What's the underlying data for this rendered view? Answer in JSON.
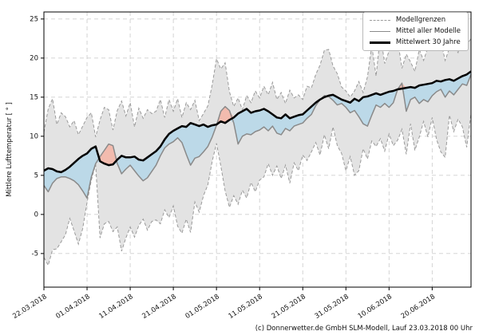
{
  "figure": {
    "ylabel": "Mittlere Lufttemperatur [ ° ]",
    "caption": "(c) Donnerwetter.de GmbH SLM-Modell, Lauf 23.03.2018 00 Uhr"
  },
  "legend": {
    "position": "upper right",
    "items": [
      {
        "label": "Modellgrenzen",
        "style": "dashed-gray-line"
      },
      {
        "label": "Mittel aller Modelle",
        "style": "solid-gray-line"
      },
      {
        "label": "Mittelwert 30 Jahre",
        "style": "thick-black-line"
      }
    ]
  },
  "chart_data": {
    "type": "line",
    "title": "",
    "xlabel": "",
    "ylabel": "Mittlere Lufttemperatur [ ° ]",
    "ylim": [
      -9.3,
      25.9
    ],
    "yticks": [
      -5,
      0,
      5,
      10,
      15,
      20,
      25
    ],
    "grid": true,
    "legend_position": "upper right",
    "x_tick_days": [
      0,
      10,
      20,
      30,
      40,
      50,
      60,
      70,
      80,
      90
    ],
    "x_tick_labels": [
      "22.03.2018",
      "01.04.2018",
      "11.04.2018",
      "21.04.2018",
      "01.05.2018",
      "11.05.2018",
      "21.05.2018",
      "31.05.2018",
      "10.06.2018",
      "20.06.2018"
    ],
    "n_days": 100,
    "fill_between": {
      "band_between": [
        "Modellgrenzen max",
        "Modellgrenzen min"
      ],
      "below_climate_color_between": [
        "Mittel aller Modelle",
        "Mittelwert 30 Jahre"
      ]
    },
    "series": [
      {
        "name": "Modellgrenzen max",
        "style": "dashed",
        "values": [
          10.5,
          13.5,
          14.8,
          11.5,
          13.0,
          12.5,
          11.2,
          12.0,
          10.2,
          11.3,
          12.4,
          13.0,
          9.9,
          12.1,
          13.7,
          13.4,
          10.8,
          13.3,
          14.5,
          12.6,
          14.3,
          11.2,
          13.6,
          12.3,
          13.4,
          12.9,
          13.2,
          14.7,
          12.4,
          14.7,
          13.2,
          14.8,
          12.4,
          14.3,
          13.4,
          14.6,
          12.0,
          12.9,
          13.9,
          16.6,
          19.9,
          18.6,
          19.4,
          15.7,
          13.8,
          14.9,
          13.4,
          15.2,
          14.3,
          15.8,
          14.9,
          16.4,
          15.3,
          16.9,
          14.7,
          15.6,
          14.2,
          15.9,
          14.9,
          15.3,
          14.7,
          16.4,
          16.2,
          17.9,
          19.1,
          21.0,
          21.1,
          19.0,
          18.0,
          16.3,
          15.8,
          15.0,
          15.8,
          17.0,
          15.6,
          17.6,
          21.6,
          17.7,
          23.0,
          19.3,
          20.9,
          21.7,
          22.3,
          18.7,
          20.5,
          19.5,
          18.3,
          21.1,
          19.7,
          21.4,
          22.7,
          21.9,
          22.2,
          19.7,
          21.3,
          21.5,
          20.7,
          23.1,
          21.7,
          22.5
        ]
      },
      {
        "name": "Modellgrenzen min",
        "style": "dashed",
        "values": [
          -5.5,
          -6.5,
          -4.5,
          -4.4,
          -3.5,
          -2.6,
          -0.5,
          -2.1,
          -3.8,
          -1.8,
          1.5,
          4.4,
          6.4,
          -3.0,
          -1.2,
          -0.9,
          -2.2,
          -1.6,
          -4.7,
          -3.0,
          -1.6,
          -2.9,
          -1.4,
          -0.6,
          -2.0,
          -0.9,
          -0.7,
          -1.2,
          0.6,
          -0.4,
          1.1,
          -1.5,
          -2.4,
          -0.6,
          -2.3,
          1.6,
          0.3,
          2.4,
          3.8,
          6.8,
          9.1,
          6.2,
          3.0,
          0.9,
          2.4,
          1.3,
          3.1,
          2.1,
          4.1,
          2.9,
          4.4,
          4.8,
          6.5,
          5.0,
          6.2,
          4.6,
          6.3,
          4.0,
          6.6,
          5.6,
          7.6,
          6.9,
          8.0,
          9.2,
          7.6,
          10.2,
          8.4,
          11.2,
          8.8,
          7.8,
          5.6,
          7.4,
          5.0,
          5.6,
          8.4,
          7.1,
          9.4,
          8.7,
          9.7,
          8.1,
          10.3,
          8.8,
          9.5,
          10.9,
          7.7,
          11.6,
          8.2,
          9.9,
          11.9,
          9.9,
          12.4,
          9.6,
          8.0,
          7.3,
          12.7,
          10.6,
          12.2,
          11.2,
          8.6,
          12.9
        ]
      },
      {
        "name": "Mittel aller Modelle",
        "style": "solid-gray",
        "values": [
          3.7,
          2.9,
          4.0,
          4.6,
          4.8,
          4.8,
          4.6,
          4.3,
          3.8,
          3.0,
          2.1,
          4.8,
          6.5,
          7.4,
          8.2,
          9.0,
          8.8,
          6.5,
          5.2,
          5.8,
          6.3,
          5.6,
          4.9,
          4.3,
          4.7,
          5.5,
          6.3,
          7.5,
          8.5,
          9.0,
          9.3,
          9.8,
          9.2,
          7.7,
          6.3,
          7.2,
          7.4,
          8.0,
          8.7,
          9.9,
          11.4,
          13.2,
          13.8,
          13.3,
          11.7,
          9.0,
          10.0,
          10.3,
          10.2,
          10.6,
          10.8,
          11.2,
          10.7,
          11.3,
          10.4,
          10.2,
          11.0,
          10.7,
          11.3,
          11.5,
          11.7,
          12.3,
          12.8,
          13.9,
          14.7,
          15.2,
          15.1,
          14.6,
          14.0,
          14.2,
          13.7,
          13.0,
          13.3,
          12.5,
          11.6,
          11.3,
          12.7,
          14.0,
          13.7,
          14.2,
          13.7,
          14.3,
          16.0,
          16.8,
          13.2,
          14.7,
          15.0,
          14.2,
          14.7,
          14.4,
          15.2,
          15.7,
          16.0,
          15.0,
          15.8,
          15.3,
          16.0,
          16.7,
          16.5,
          17.9
        ]
      },
      {
        "name": "Mittelwert 30 Jahre",
        "style": "thick-black",
        "values": [
          5.6,
          5.9,
          5.8,
          5.5,
          5.4,
          5.7,
          6.1,
          6.6,
          7.1,
          7.5,
          7.8,
          8.4,
          8.7,
          6.8,
          6.5,
          6.3,
          6.4,
          7.0,
          7.5,
          7.3,
          7.3,
          7.4,
          7.0,
          6.9,
          7.3,
          7.7,
          8.1,
          8.7,
          9.6,
          10.3,
          10.7,
          11.0,
          11.3,
          11.2,
          11.7,
          11.5,
          11.3,
          11.5,
          11.2,
          11.4,
          11.5,
          11.9,
          11.7,
          12.1,
          12.4,
          12.9,
          13.2,
          13.5,
          13.0,
          13.2,
          13.3,
          13.5,
          13.2,
          12.8,
          12.4,
          12.3,
          12.8,
          12.3,
          12.5,
          12.7,
          12.8,
          13.3,
          13.8,
          14.3,
          14.7,
          15.0,
          15.2,
          15.3,
          15.0,
          14.7,
          14.5,
          14.3,
          14.8,
          14.5,
          15.0,
          15.1,
          15.3,
          15.5,
          15.3,
          15.5,
          15.7,
          15.8,
          16.0,
          16.1,
          16.2,
          16.3,
          16.2,
          16.5,
          16.6,
          16.7,
          16.8,
          17.1,
          17.0,
          17.2,
          17.3,
          17.1,
          17.4,
          17.7,
          17.9,
          18.3
        ]
      }
    ],
    "colors": {
      "band_fill": "#e3e3e3",
      "bounds_line": "#9a9a9a",
      "models_line": "#8a8a8a",
      "climate_line": "#000000",
      "below_fill": "#b7d7e8",
      "above_fill": "#f2b8ab",
      "grid": "#cfcfcf",
      "axis": "#000000"
    }
  }
}
